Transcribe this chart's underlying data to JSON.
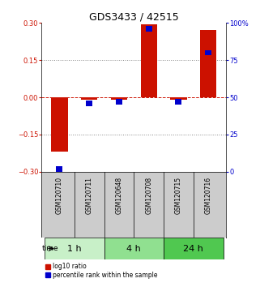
{
  "title": "GDS3433 / 42515",
  "samples": [
    "GSM120710",
    "GSM120711",
    "GSM120648",
    "GSM120708",
    "GSM120715",
    "GSM120716"
  ],
  "groups": [
    {
      "label": "1 h",
      "indices": [
        0,
        1
      ],
      "color": "#c8f0c8"
    },
    {
      "label": "4 h",
      "indices": [
        2,
        3
      ],
      "color": "#90e090"
    },
    {
      "label": "24 h",
      "indices": [
        4,
        5
      ],
      "color": "#50c850"
    }
  ],
  "log10_ratio": [
    -0.22,
    -0.01,
    -0.01,
    0.295,
    -0.01,
    0.27
  ],
  "percentile_rank": [
    2,
    46,
    47,
    96,
    47,
    80
  ],
  "ylim_left": [
    -0.3,
    0.3
  ],
  "ylim_right": [
    0,
    100
  ],
  "yticks_left": [
    -0.3,
    -0.15,
    0,
    0.15,
    0.3
  ],
  "yticks_right": [
    0,
    25,
    50,
    75,
    100
  ],
  "bar_width": 0.55,
  "red_color": "#cc1100",
  "blue_color": "#0000cc",
  "hline_color": "#cc1100",
  "dotted_color": "#888888",
  "bg_color": "#ffffff",
  "plot_bg": "#ffffff",
  "sample_box_color": "#cccccc",
  "legend_red_label": "log10 ratio",
  "legend_blue_label": "percentile rank within the sample",
  "time_label": "time",
  "title_fontsize": 9,
  "tick_fontsize": 6,
  "sample_fontsize": 5.5,
  "group_label_fontsize": 8
}
